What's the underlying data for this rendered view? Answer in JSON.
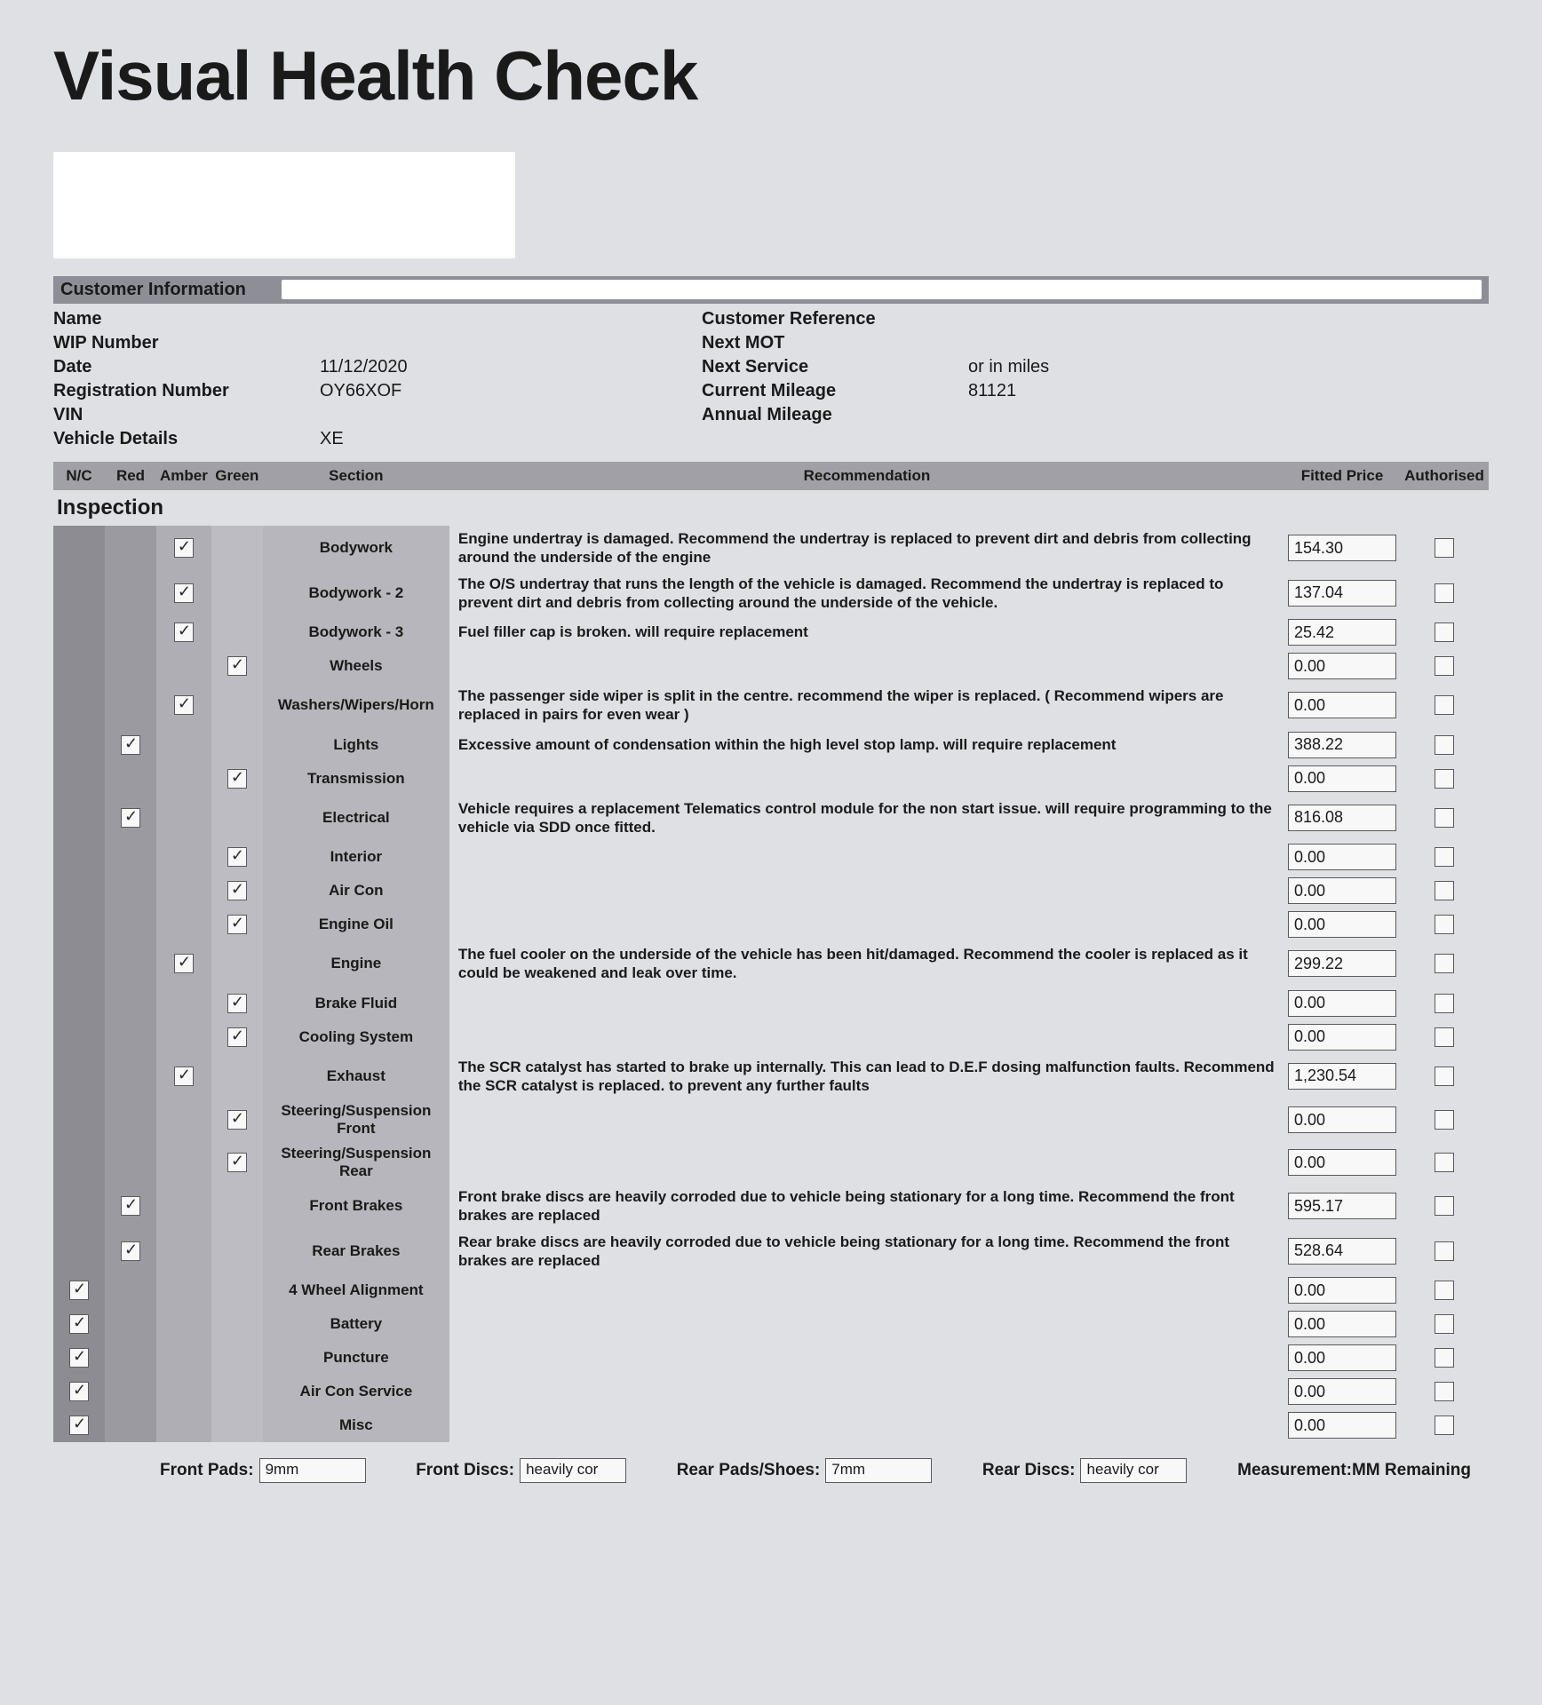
{
  "title": "Visual Health Check",
  "customer_info_header": "Customer Information",
  "customer": {
    "fields_left": [
      {
        "label": "Name",
        "value": ""
      },
      {
        "label": "WIP Number",
        "value": ""
      },
      {
        "label": "Date",
        "value": "11/12/2020"
      },
      {
        "label": "Registration Number",
        "value": "OY66XOF"
      },
      {
        "label": "VIN",
        "value": ""
      },
      {
        "label": "Vehicle Details",
        "value": "XE"
      }
    ],
    "fields_right": [
      {
        "label": "Customer Reference",
        "value": ""
      },
      {
        "label": "Next MOT",
        "value": ""
      },
      {
        "label": "Next Service",
        "value": "or in miles"
      },
      {
        "label": "Current Mileage",
        "value": "81121"
      },
      {
        "label": "Annual Mileage",
        "value": ""
      },
      {
        "label": "",
        "value": ""
      }
    ]
  },
  "columns": {
    "nc": "N/C",
    "red": "Red",
    "amber": "Amber",
    "green": "Green",
    "section": "Section",
    "recommendation": "Recommendation",
    "fitted_price": "Fitted Price",
    "authorised": "Authorised"
  },
  "group_header": "Inspection",
  "rows": [
    {
      "rag": "amber",
      "section": "Bodywork",
      "recommendation": "Engine undertray is damaged. Recommend the undertray is replaced to prevent dirt and debris from collecting around the underside of the engine",
      "price": "154.30"
    },
    {
      "rag": "amber",
      "section": "Bodywork - 2",
      "recommendation": "The O/S undertray that runs the length of the vehicle is damaged. Recommend the undertray is replaced to prevent dirt and debris from collecting around the underside of the vehicle.",
      "price": "137.04"
    },
    {
      "rag": "amber",
      "section": "Bodywork - 3",
      "recommendation": "Fuel filler cap is broken. will require replacement",
      "price": "25.42"
    },
    {
      "rag": "green",
      "section": "Wheels",
      "recommendation": "",
      "price": "0.00"
    },
    {
      "rag": "amber",
      "section": "Washers/Wipers/Horn",
      "recommendation": "The passenger side wiper is split in the centre. recommend the wiper is replaced. ( Recommend wipers are replaced in pairs for even wear )",
      "price": "0.00"
    },
    {
      "rag": "red",
      "section": "Lights",
      "recommendation": "Excessive amount of condensation within the high level stop lamp. will require replacement",
      "price": "388.22"
    },
    {
      "rag": "green",
      "section": "Transmission",
      "recommendation": "",
      "price": "0.00"
    },
    {
      "rag": "red",
      "section": "Electrical",
      "recommendation": "Vehicle requires a replacement Telematics control module for the non start issue. will require programming to the vehicle via SDD once fitted.",
      "price": "816.08"
    },
    {
      "rag": "green",
      "section": "Interior",
      "recommendation": "",
      "price": "0.00"
    },
    {
      "rag": "green",
      "section": "Air Con",
      "recommendation": "",
      "price": "0.00"
    },
    {
      "rag": "green",
      "section": "Engine Oil",
      "recommendation": "",
      "price": "0.00"
    },
    {
      "rag": "amber",
      "section": "Engine",
      "recommendation": "The fuel cooler on the underside of the vehicle has been hit/damaged. Recommend the cooler is replaced as it could be weakened and leak over time.",
      "price": "299.22"
    },
    {
      "rag": "green",
      "section": "Brake Fluid",
      "recommendation": "",
      "price": "0.00"
    },
    {
      "rag": "green",
      "section": "Cooling System",
      "recommendation": "",
      "price": "0.00"
    },
    {
      "rag": "amber",
      "section": "Exhaust",
      "recommendation": "The SCR catalyst has started to brake up internally. This can lead to D.E.F dosing malfunction faults. Recommend the SCR catalyst is replaced. to prevent any further faults",
      "price": "1,230.54"
    },
    {
      "rag": "green",
      "section": "Steering/Suspension Front",
      "recommendation": "",
      "price": "0.00"
    },
    {
      "rag": "green",
      "section": "Steering/Suspension Rear",
      "recommendation": "",
      "price": "0.00"
    },
    {
      "rag": "red",
      "section": "Front Brakes",
      "recommendation": "Front brake discs are heavily corroded due to vehicle being stationary for a long time. Recommend the front brakes are replaced",
      "price": "595.17"
    },
    {
      "rag": "red",
      "section": "Rear Brakes",
      "recommendation": "Rear brake discs are heavily corroded due to vehicle being stationary for a long time. Recommend the front brakes are replaced",
      "price": "528.64"
    },
    {
      "rag": "nc",
      "section": "4 Wheel Alignment",
      "recommendation": "",
      "price": "0.00"
    },
    {
      "rag": "nc",
      "section": "Battery",
      "recommendation": "",
      "price": "0.00"
    },
    {
      "rag": "nc",
      "section": "Puncture",
      "recommendation": "",
      "price": "0.00"
    },
    {
      "rag": "nc",
      "section": "Air Con Service",
      "recommendation": "",
      "price": "0.00"
    },
    {
      "rag": "nc",
      "section": "Misc",
      "recommendation": "",
      "price": "0.00"
    }
  ],
  "measurements": {
    "front_pads_label": "Front Pads:",
    "front_pads_value": "9mm",
    "front_discs_label": "Front Discs:",
    "front_discs_value": "heavily cor",
    "rear_pads_label": "Rear Pads/Shoes:",
    "rear_pads_value": "7mm",
    "rear_discs_label": "Rear Discs:",
    "rear_discs_value": "heavily cor",
    "unit_label": "Measurement:MM Remaining"
  }
}
